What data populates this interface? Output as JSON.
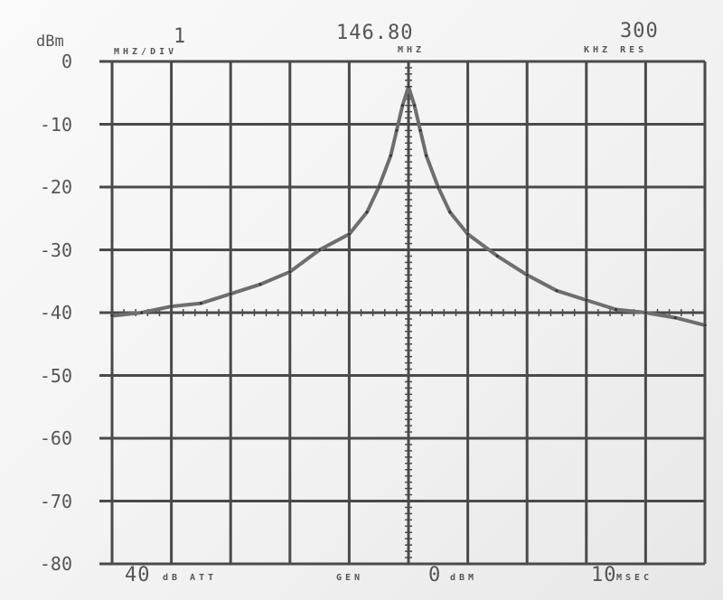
{
  "header": {
    "y_unit": "dBm",
    "scale_value": "1",
    "scale_unit": "MHZ/DIV",
    "center_freq": "146.80",
    "center_unit": "MHZ",
    "resolution_value": "300",
    "resolution_unit": "KHZ RES"
  },
  "footer": {
    "attenuation_value": "40",
    "attenuation_unit": "dB ATT",
    "gen_label": "GEN",
    "gen_value": "0",
    "gen_unit": "dBM",
    "sweep_value": "10",
    "sweep_unit": "MSEC"
  },
  "colors": {
    "trace": "#6e6e6e",
    "grid": "#4a4a4a",
    "text": "#555555"
  },
  "chart_data": {
    "type": "line",
    "title": "",
    "xlabel": "",
    "ylabel": "dBm",
    "xlim": [
      -5,
      5
    ],
    "ylim": [
      -80,
      0
    ],
    "x_unit": "MHz offset from 146.80 MHz",
    "y_ticks": [
      0,
      -10,
      -20,
      -30,
      -40,
      -50,
      -60,
      -70,
      -80
    ],
    "grid": true,
    "series": [
      {
        "x": [
          -5,
          -4.5,
          -4,
          -3.5,
          -3,
          -2.5,
          -2,
          -1.5,
          -1,
          -0.7,
          -0.5,
          -0.3,
          -0.2,
          -0.1,
          0,
          0.1,
          0.2,
          0.3,
          0.5,
          0.7,
          1,
          1.5,
          2,
          2.5,
          3,
          3.5,
          4,
          4.5,
          5
        ],
        "y": [
          -40.5,
          -40,
          -39,
          -38.5,
          -37,
          -35.5,
          -33.5,
          -30,
          -27.5,
          -24,
          -20,
          -15,
          -11,
          -7,
          -4,
          -7,
          -11,
          -15,
          -20,
          -24,
          -27.5,
          -31,
          -34,
          -36.5,
          -38,
          -39.5,
          -40,
          -40.8,
          -42
        ]
      }
    ]
  }
}
